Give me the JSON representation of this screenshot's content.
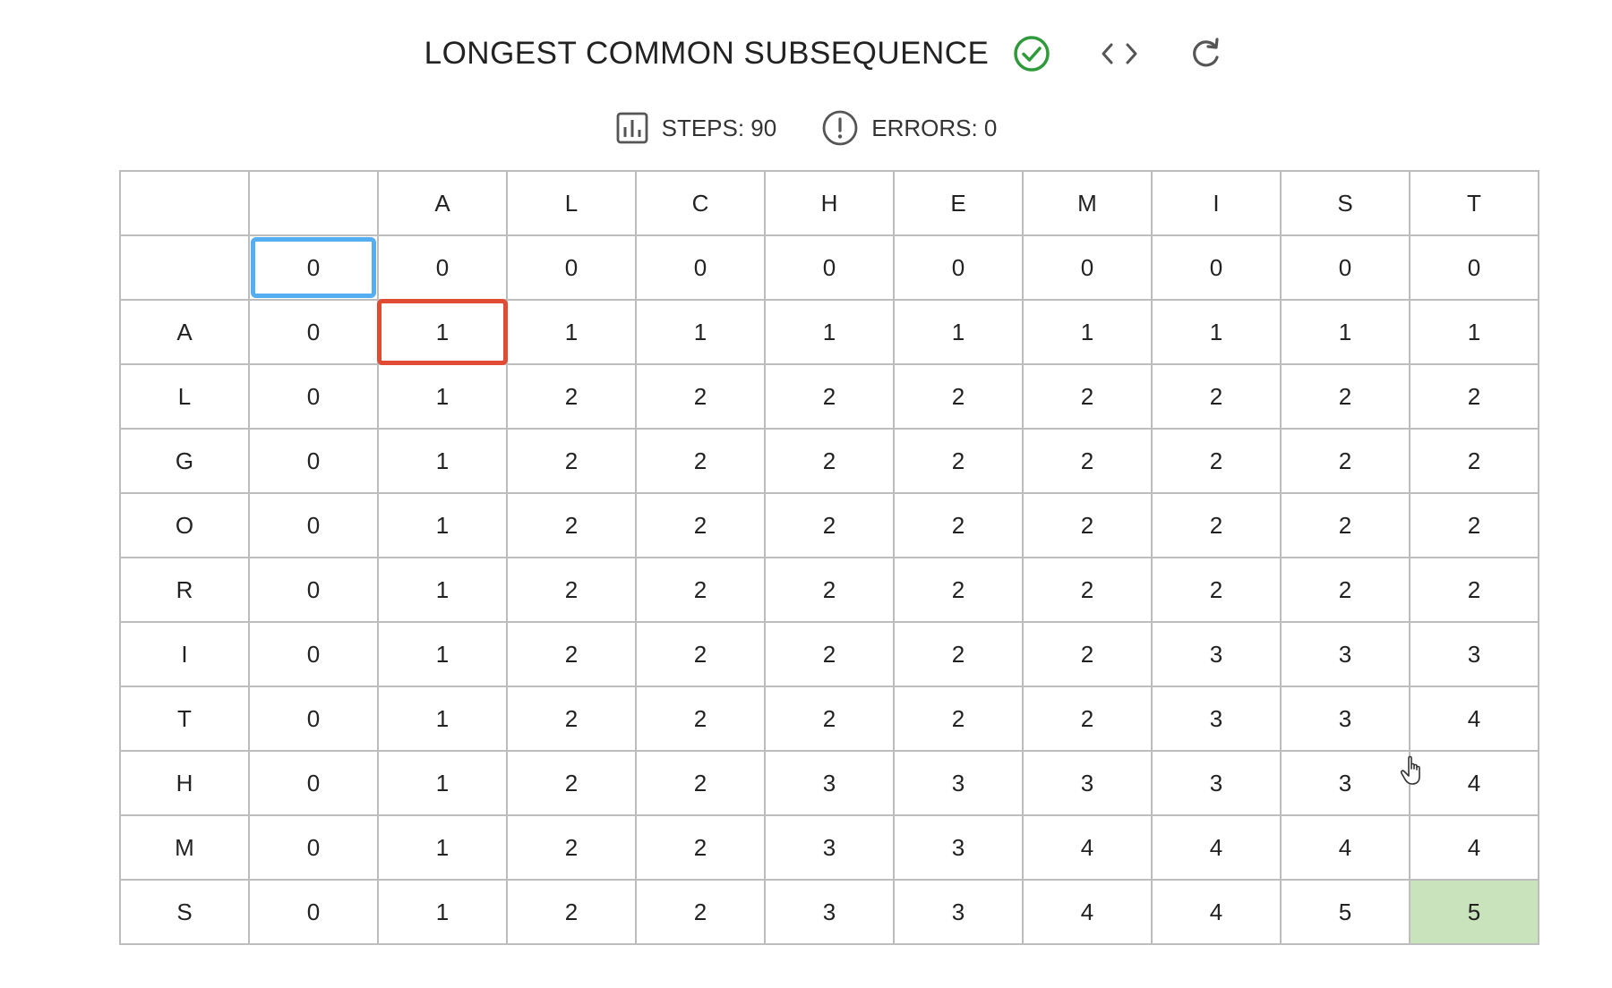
{
  "header": {
    "title": "LONGEST COMMON SUBSEQUENCE",
    "icons": [
      "check-circle-icon",
      "code-icon",
      "refresh-icon"
    ],
    "check_color": "#2e9a3a"
  },
  "stats": {
    "steps_label": "STEPS: 90",
    "errors_label": "ERRORS: 0"
  },
  "grid": {
    "column_headers": [
      "",
      "",
      "A",
      "L",
      "C",
      "H",
      "E",
      "M",
      "I",
      "S",
      "T"
    ],
    "rows": [
      [
        "",
        "0",
        "0",
        "0",
        "0",
        "0",
        "0",
        "0",
        "0",
        "0",
        "0"
      ],
      [
        "A",
        "0",
        "1",
        "1",
        "1",
        "1",
        "1",
        "1",
        "1",
        "1",
        "1"
      ],
      [
        "L",
        "0",
        "1",
        "2",
        "2",
        "2",
        "2",
        "2",
        "2",
        "2",
        "2"
      ],
      [
        "G",
        "0",
        "1",
        "2",
        "2",
        "2",
        "2",
        "2",
        "2",
        "2",
        "2"
      ],
      [
        "O",
        "0",
        "1",
        "2",
        "2",
        "2",
        "2",
        "2",
        "2",
        "2",
        "2"
      ],
      [
        "R",
        "0",
        "1",
        "2",
        "2",
        "2",
        "2",
        "2",
        "2",
        "2",
        "2"
      ],
      [
        "I",
        "0",
        "1",
        "2",
        "2",
        "2",
        "2",
        "2",
        "3",
        "3",
        "3"
      ],
      [
        "T",
        "0",
        "1",
        "2",
        "2",
        "2",
        "2",
        "2",
        "3",
        "3",
        "4"
      ],
      [
        "H",
        "0",
        "1",
        "2",
        "2",
        "3",
        "3",
        "3",
        "3",
        "3",
        "4"
      ],
      [
        "M",
        "0",
        "1",
        "2",
        "2",
        "3",
        "3",
        "4",
        "4",
        "4",
        "4"
      ],
      [
        "S",
        "0",
        "1",
        "2",
        "2",
        "3",
        "3",
        "4",
        "4",
        "5",
        "5"
      ]
    ],
    "focus_cell": {
      "row": 0,
      "col": 1
    },
    "selected_cell": {
      "row": 1,
      "col": 2
    },
    "result_cell": {
      "row": 10,
      "col": 10
    },
    "colors": {
      "focus_border": "#56aef2",
      "selected_border": "#e14a33",
      "result_fill": "#c9e4bc",
      "grid_line": "#bdbdbd"
    }
  }
}
